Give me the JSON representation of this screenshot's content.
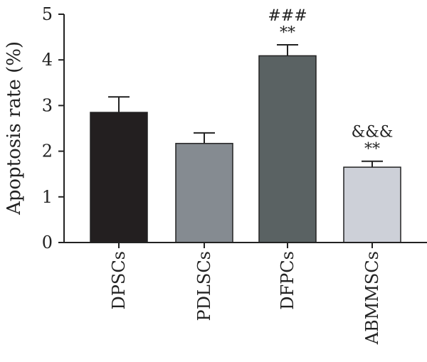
{
  "chart_data": {
    "type": "bar",
    "title": "",
    "xlabel": "",
    "ylabel": "Apoptosis rate (%)",
    "ylim": [
      0,
      5
    ],
    "yticks": [
      "0",
      "1",
      "2",
      "3",
      "4",
      "5"
    ],
    "grid": false,
    "categories": [
      "DPSCs",
      "PDLSCs",
      "DFPCs",
      "ABMMSCs"
    ],
    "values": [
      2.85,
      2.17,
      4.09,
      1.65
    ],
    "errors": [
      0.34,
      0.23,
      0.24,
      0.13
    ],
    "bar_colors": [
      "#231f20",
      "#858b91",
      "#5a6263",
      "#cdd0d8"
    ],
    "annotations": [
      {
        "category": "DFPCs",
        "lines": [
          "###",
          "**"
        ]
      },
      {
        "category": "ABMMSCs",
        "lines": [
          "&&&",
          "**"
        ]
      }
    ]
  }
}
